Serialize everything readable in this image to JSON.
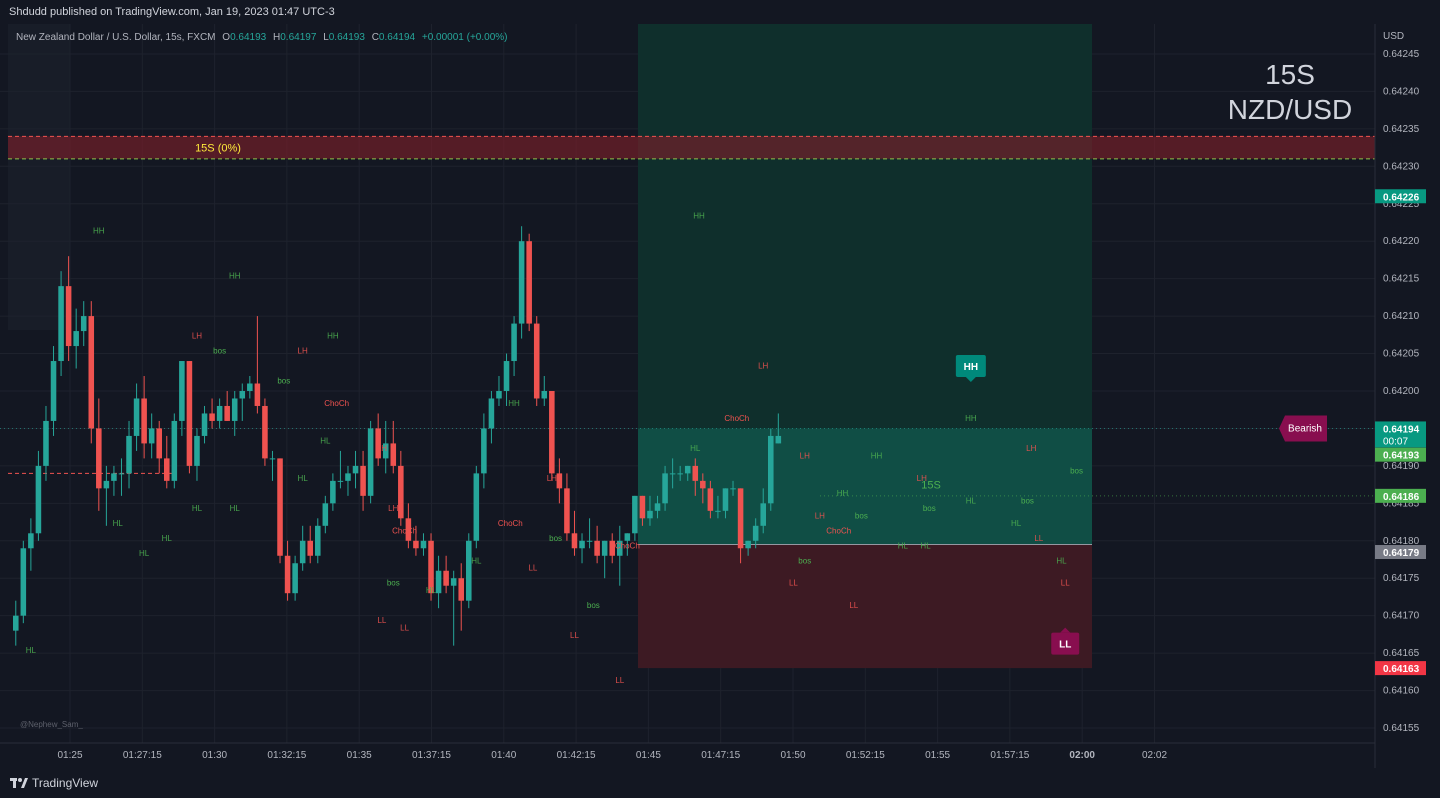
{
  "header": {
    "published": "Shdudd published on TradingView.com, Jan 19, 2023 01:47 UTC-3"
  },
  "footer": {
    "brand": "TradingView"
  },
  "legend": {
    "symbol": "New Zealand Dollar / U.S. Dollar, 15s, FXCM",
    "o_label": "O",
    "o": "0.64193",
    "h_label": "H",
    "h": "0.64197",
    "l_label": "L",
    "l": "0.64193",
    "c_label": "C",
    "c": "0.64194",
    "change": "+0.00001 (+0.00%)"
  },
  "watermark": {
    "line1": "15S",
    "line2": "NZD/USD"
  },
  "credit": "@Nephew_Sam_",
  "colors": {
    "up": "#26a69a",
    "down": "#ef5350",
    "bg": "#131722",
    "grid": "#1e222d"
  },
  "chart_data": {
    "type": "candlestick",
    "currency": "USD",
    "y_range": [
      0.64153,
      0.64249
    ],
    "y_ticks": [
      0.64245,
      0.6424,
      0.64235,
      0.6423,
      0.64225,
      0.6422,
      0.64215,
      0.6421,
      0.64205,
      0.642,
      0.64195,
      0.6419,
      0.64185,
      0.6418,
      0.64175,
      0.6417,
      0.64165,
      0.6416,
      0.64155
    ],
    "x_ticks": [
      "01:25",
      "01:27:15",
      "01:30",
      "01:32:15",
      "01:35",
      "01:37:15",
      "01:40",
      "01:42:15",
      "01:45",
      "01:47:15",
      "01:50",
      "01:52:15",
      "01:55",
      "01:57:15",
      "02:00",
      "02:02"
    ],
    "x_ticks_bold": [
      "02:00"
    ],
    "price_tags": [
      {
        "value": "0.64226",
        "price": 0.64226,
        "color": "#089981"
      },
      {
        "value": "0.64194",
        "price": 0.64195,
        "color": "#089981",
        "sub": "00:07"
      },
      {
        "value": "0.64193",
        "price": 0.641915,
        "color": "#4caf50"
      },
      {
        "value": "0.64186",
        "price": 0.64186,
        "color": "#4caf50"
      },
      {
        "value": "0.64179",
        "price": 0.641785,
        "color": "#787b86"
      },
      {
        "value": "0.64163",
        "price": 0.64163,
        "color": "#f23645"
      }
    ],
    "candles": [
      [
        0.64168,
        0.64172,
        0.64166,
        0.6417
      ],
      [
        0.6417,
        0.6418,
        0.64169,
        0.64179
      ],
      [
        0.64179,
        0.64183,
        0.64176,
        0.64181
      ],
      [
        0.64181,
        0.64192,
        0.6418,
        0.6419
      ],
      [
        0.6419,
        0.64198,
        0.64188,
        0.64196
      ],
      [
        0.64196,
        0.64206,
        0.64194,
        0.64204
      ],
      [
        0.64204,
        0.64216,
        0.64202,
        0.64214
      ],
      [
        0.64214,
        0.64218,
        0.64204,
        0.64206
      ],
      [
        0.64206,
        0.64211,
        0.64203,
        0.64208
      ],
      [
        0.64208,
        0.64212,
        0.64206,
        0.6421
      ],
      [
        0.6421,
        0.64212,
        0.64193,
        0.64195
      ],
      [
        0.64195,
        0.64199,
        0.64184,
        0.64187
      ],
      [
        0.64187,
        0.6419,
        0.64182,
        0.64188
      ],
      [
        0.64188,
        0.6419,
        0.64186,
        0.64189
      ],
      [
        0.64189,
        0.64191,
        0.64186,
        0.64189
      ],
      [
        0.64189,
        0.64196,
        0.64187,
        0.64194
      ],
      [
        0.64194,
        0.64201,
        0.64192,
        0.64199
      ],
      [
        0.64199,
        0.64202,
        0.64191,
        0.64193
      ],
      [
        0.64193,
        0.64197,
        0.64191,
        0.64195
      ],
      [
        0.64195,
        0.64196,
        0.64189,
        0.64191
      ],
      [
        0.64191,
        0.64194,
        0.64187,
        0.64188
      ],
      [
        0.64188,
        0.64197,
        0.64187,
        0.64196
      ],
      [
        0.64196,
        0.64204,
        0.64194,
        0.64204
      ],
      [
        0.64204,
        0.64204,
        0.64189,
        0.6419
      ],
      [
        0.6419,
        0.64195,
        0.64188,
        0.64194
      ],
      [
        0.64194,
        0.64198,
        0.64193,
        0.64197
      ],
      [
        0.64197,
        0.64199,
        0.64195,
        0.64196
      ],
      [
        0.64196,
        0.64199,
        0.64195,
        0.64198
      ],
      [
        0.64198,
        0.642,
        0.64196,
        0.64196
      ],
      [
        0.64196,
        0.642,
        0.64194,
        0.64199
      ],
      [
        0.64199,
        0.64201,
        0.64196,
        0.642
      ],
      [
        0.642,
        0.64202,
        0.64199,
        0.64201
      ],
      [
        0.64201,
        0.6421,
        0.64197,
        0.64198
      ],
      [
        0.64198,
        0.64199,
        0.6419,
        0.64191
      ],
      [
        0.64191,
        0.64192,
        0.64188,
        0.64191
      ],
      [
        0.64191,
        0.64191,
        0.64177,
        0.64178
      ],
      [
        0.64178,
        0.6418,
        0.64172,
        0.64173
      ],
      [
        0.64173,
        0.64178,
        0.64172,
        0.64177
      ],
      [
        0.64177,
        0.64182,
        0.64176,
        0.6418
      ],
      [
        0.6418,
        0.64182,
        0.64177,
        0.64178
      ],
      [
        0.64178,
        0.64183,
        0.64177,
        0.64182
      ],
      [
        0.64182,
        0.64186,
        0.64181,
        0.64185
      ],
      [
        0.64185,
        0.64189,
        0.64184,
        0.64188
      ],
      [
        0.64188,
        0.64192,
        0.64187,
        0.64188
      ],
      [
        0.64188,
        0.6419,
        0.64186,
        0.64189
      ],
      [
        0.64189,
        0.64192,
        0.64187,
        0.6419
      ],
      [
        0.6419,
        0.64192,
        0.64184,
        0.64186
      ],
      [
        0.64186,
        0.64196,
        0.64185,
        0.64195
      ],
      [
        0.64195,
        0.64197,
        0.6419,
        0.64191
      ],
      [
        0.64191,
        0.64196,
        0.64189,
        0.64193
      ],
      [
        0.64193,
        0.64196,
        0.64189,
        0.6419
      ],
      [
        0.6419,
        0.64192,
        0.64182,
        0.64183
      ],
      [
        0.64183,
        0.64185,
        0.64179,
        0.6418
      ],
      [
        0.6418,
        0.64182,
        0.64178,
        0.64179
      ],
      [
        0.64179,
        0.64181,
        0.64178,
        0.6418
      ],
      [
        0.6418,
        0.64181,
        0.64172,
        0.64173
      ],
      [
        0.64173,
        0.64178,
        0.64171,
        0.64176
      ],
      [
        0.64176,
        0.64178,
        0.64173,
        0.64174
      ],
      [
        0.64174,
        0.64176,
        0.64166,
        0.64175
      ],
      [
        0.64175,
        0.64177,
        0.64168,
        0.64172
      ],
      [
        0.64172,
        0.64181,
        0.64171,
        0.6418
      ],
      [
        0.6418,
        0.6419,
        0.64179,
        0.64189
      ],
      [
        0.64189,
        0.64197,
        0.64187,
        0.64195
      ],
      [
        0.64195,
        0.642,
        0.64193,
        0.64199
      ],
      [
        0.64199,
        0.64202,
        0.64198,
        0.642
      ],
      [
        0.642,
        0.64205,
        0.64198,
        0.64204
      ],
      [
        0.64204,
        0.6421,
        0.64202,
        0.64209
      ],
      [
        0.64209,
        0.64222,
        0.64207,
        0.6422
      ],
      [
        0.6422,
        0.64221,
        0.64208,
        0.64209
      ],
      [
        0.64209,
        0.6421,
        0.64198,
        0.64199
      ],
      [
        0.64199,
        0.64202,
        0.64198,
        0.642
      ],
      [
        0.642,
        0.642,
        0.64188,
        0.64189
      ],
      [
        0.64189,
        0.64191,
        0.64185,
        0.64187
      ],
      [
        0.64187,
        0.64189,
        0.6418,
        0.64181
      ],
      [
        0.64181,
        0.64184,
        0.64178,
        0.64179
      ],
      [
        0.64179,
        0.64181,
        0.64177,
        0.6418
      ],
      [
        0.6418,
        0.64183,
        0.64179,
        0.6418
      ],
      [
        0.6418,
        0.64182,
        0.64177,
        0.64178
      ],
      [
        0.64178,
        0.6418,
        0.64175,
        0.6418
      ],
      [
        0.6418,
        0.64181,
        0.64177,
        0.64178
      ],
      [
        0.64178,
        0.64182,
        0.64174,
        0.6418
      ],
      [
        0.6418,
        0.64181,
        0.64178,
        0.64181
      ],
      [
        0.64181,
        0.64186,
        0.6418,
        0.64186
      ],
      [
        0.64186,
        0.64186,
        0.64182,
        0.64183
      ],
      [
        0.64183,
        0.64186,
        0.64182,
        0.64184
      ],
      [
        0.64184,
        0.64186,
        0.64183,
        0.64185
      ],
      [
        0.64185,
        0.6419,
        0.64184,
        0.64189
      ],
      [
        0.64189,
        0.64191,
        0.64187,
        0.64189
      ],
      [
        0.64189,
        0.6419,
        0.64188,
        0.64189
      ],
      [
        0.64189,
        0.6419,
        0.64188,
        0.6419
      ],
      [
        0.6419,
        0.64191,
        0.64186,
        0.64188
      ],
      [
        0.64188,
        0.64189,
        0.64185,
        0.64187
      ],
      [
        0.64187,
        0.64188,
        0.64183,
        0.64184
      ],
      [
        0.64184,
        0.64186,
        0.64183,
        0.64184
      ],
      [
        0.64184,
        0.64187,
        0.64183,
        0.64187
      ],
      [
        0.64187,
        0.64188,
        0.64186,
        0.64187
      ],
      [
        0.64187,
        0.64187,
        0.64177,
        0.64179
      ],
      [
        0.64179,
        0.6418,
        0.64178,
        0.6418
      ],
      [
        0.6418,
        0.64183,
        0.64179,
        0.64182
      ],
      [
        0.64182,
        0.64187,
        0.64181,
        0.64185
      ],
      [
        0.64185,
        0.64195,
        0.64184,
        0.64194
      ],
      [
        0.64193,
        0.64197,
        0.64193,
        0.64194
      ]
    ],
    "structure_labels": [
      {
        "text": "HH",
        "t": 11.5,
        "p": 0.64221,
        "kind": "high"
      },
      {
        "text": "HH",
        "t": 29.5,
        "p": 0.64215,
        "kind": "high"
      },
      {
        "text": "HH",
        "t": 42.5,
        "p": 0.64207,
        "kind": "high"
      },
      {
        "text": "HH",
        "t": 66.5,
        "p": 0.64198,
        "kind": "high"
      },
      {
        "text": "HH",
        "t": 91,
        "p": 0.64223,
        "kind": "high"
      },
      {
        "text": "HH",
        "t": 114.5,
        "p": 0.64191,
        "kind": "high"
      },
      {
        "text": "HH",
        "t": 127,
        "p": 0.64196,
        "kind": "high"
      },
      {
        "text": "HH",
        "t": 110,
        "p": 0.64186,
        "kind": "high"
      },
      {
        "text": "LH",
        "t": 24.5,
        "p": 0.64207,
        "kind": "high"
      },
      {
        "text": "LH",
        "t": 38.5,
        "p": 0.64205,
        "kind": "high"
      },
      {
        "text": "LH",
        "t": 49,
        "p": 0.64192,
        "kind": "high"
      },
      {
        "text": "LH",
        "t": 71.5,
        "p": 0.64188,
        "kind": "high"
      },
      {
        "text": "LH",
        "t": 99.5,
        "p": 0.64203,
        "kind": "high"
      },
      {
        "text": "LH",
        "t": 105,
        "p": 0.64191,
        "kind": "high"
      },
      {
        "text": "LH",
        "t": 120.5,
        "p": 0.64188,
        "kind": "high"
      },
      {
        "text": "LH",
        "t": 135,
        "p": 0.64192,
        "kind": "high"
      },
      {
        "text": "LH",
        "t": 107,
        "p": 0.64183,
        "kind": "high"
      },
      {
        "text": "LH",
        "t": 50.5,
        "p": 0.64184,
        "kind": "high"
      },
      {
        "text": "HL",
        "t": 2.5,
        "p": 0.64165,
        "kind": "low"
      },
      {
        "text": "HL",
        "t": 17.5,
        "p": 0.64178,
        "kind": "low"
      },
      {
        "text": "HL",
        "t": 20.5,
        "p": 0.6418,
        "kind": "low"
      },
      {
        "text": "HL",
        "t": 24.5,
        "p": 0.64184,
        "kind": "low"
      },
      {
        "text": "HL",
        "t": 29.5,
        "p": 0.64184,
        "kind": "low"
      },
      {
        "text": "HL",
        "t": 38.5,
        "p": 0.64188,
        "kind": "low"
      },
      {
        "text": "HL",
        "t": 41.5,
        "p": 0.64193,
        "kind": "low"
      },
      {
        "text": "HL",
        "t": 55.5,
        "p": 0.64173,
        "kind": "low"
      },
      {
        "text": "HL",
        "t": 61.5,
        "p": 0.64177,
        "kind": "low"
      },
      {
        "text": "HL",
        "t": 90.5,
        "p": 0.64192,
        "kind": "low"
      },
      {
        "text": "HL",
        "t": 118,
        "p": 0.64179,
        "kind": "low"
      },
      {
        "text": "HL",
        "t": 121,
        "p": 0.64179,
        "kind": "low"
      },
      {
        "text": "HL",
        "t": 127,
        "p": 0.64185,
        "kind": "low"
      },
      {
        "text": "HL",
        "t": 133,
        "p": 0.64182,
        "kind": "low"
      },
      {
        "text": "HL",
        "t": 139,
        "p": 0.64177,
        "kind": "low"
      },
      {
        "text": "HL",
        "t": 14,
        "p": 0.64182,
        "kind": "low"
      },
      {
        "text": "LL",
        "t": 49,
        "p": 0.64169,
        "kind": "low"
      },
      {
        "text": "LL",
        "t": 52,
        "p": 0.64168,
        "kind": "low"
      },
      {
        "text": "LL",
        "t": 69,
        "p": 0.64176,
        "kind": "low"
      },
      {
        "text": "LL",
        "t": 74.5,
        "p": 0.64167,
        "kind": "low"
      },
      {
        "text": "LL",
        "t": 80.5,
        "p": 0.64161,
        "kind": "low"
      },
      {
        "text": "LL",
        "t": 103.5,
        "p": 0.64174,
        "kind": "low"
      },
      {
        "text": "LL",
        "t": 111.5,
        "p": 0.64171,
        "kind": "low"
      },
      {
        "text": "LL",
        "t": 136,
        "p": 0.6418,
        "kind": "low"
      },
      {
        "text": "LL",
        "t": 139.5,
        "p": 0.64174,
        "kind": "low"
      }
    ],
    "event_labels": [
      {
        "text": "bos",
        "t": 27.5,
        "p": 0.64205
      },
      {
        "text": "bos",
        "t": 36,
        "p": 0.64201
      },
      {
        "text": "ChoCh",
        "t": 43,
        "p": 0.64198
      },
      {
        "text": "ChoCh",
        "t": 52,
        "p": 0.64181
      },
      {
        "text": "bos",
        "t": 50.5,
        "p": 0.64174
      },
      {
        "text": "ChoCh",
        "t": 66,
        "p": 0.64182
      },
      {
        "text": "bos",
        "t": 72,
        "p": 0.6418
      },
      {
        "text": "bos",
        "t": 77,
        "p": 0.64171
      },
      {
        "text": "ChoCh",
        "t": 81.5,
        "p": 0.64179
      },
      {
        "text": "ChoCh",
        "t": 96,
        "p": 0.64196
      },
      {
        "text": "bos",
        "t": 105,
        "p": 0.64177
      },
      {
        "text": "ChoCh",
        "t": 109.5,
        "p": 0.64181
      },
      {
        "text": "bos",
        "t": 112.5,
        "p": 0.64183
      },
      {
        "text": "bos",
        "t": 121.5,
        "p": 0.64184
      },
      {
        "text": "bos",
        "t": 134.5,
        "p": 0.64185
      },
      {
        "text": "bos",
        "t": 141,
        "p": 0.64189
      }
    ],
    "zone": {
      "label": "15S (0%)",
      "p_top": 0.64234,
      "p_bottom": 0.64231
    },
    "position": {
      "label": "15S",
      "entry": 0.641795,
      "target": 0.64195,
      "stop": 0.64163,
      "top": 0.64249
    },
    "markers": [
      {
        "text": "HH",
        "t": 127,
        "p": 0.642
      },
      {
        "text": "LL",
        "t": 139.5,
        "p": 0.64168
      },
      {
        "text": "Bearish",
        "p": 0.64195
      }
    ]
  }
}
